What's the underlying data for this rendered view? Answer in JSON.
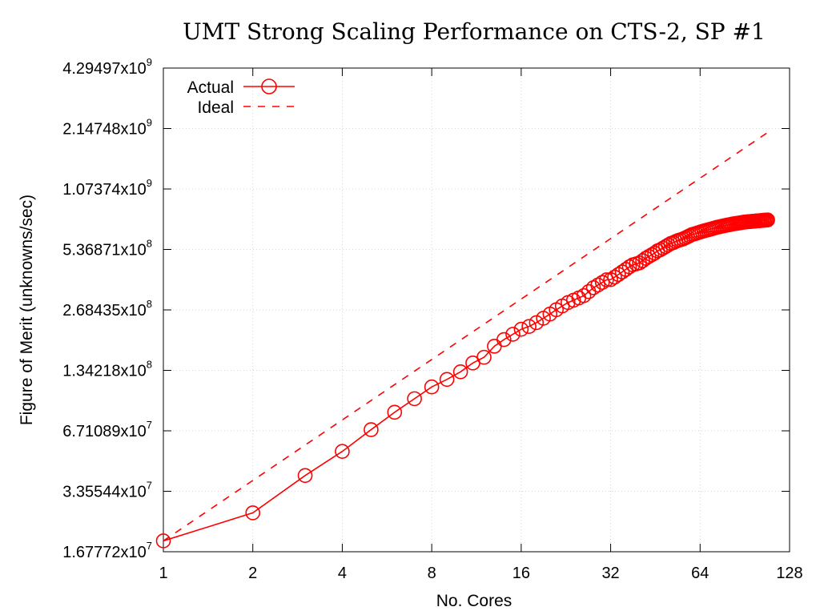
{
  "chart_data": {
    "type": "line",
    "title": "UMT Strong Scaling Performance on CTS-2, SP #1",
    "xlabel": "No. Cores",
    "ylabel": "Figure of Merit (unknowns/sec)",
    "x_scale": "log2",
    "y_scale": "log2",
    "xlim": [
      1,
      128
    ],
    "ylim": [
      16777216,
      4294967296
    ],
    "x_ticks": [
      {
        "value": 1,
        "label": "1"
      },
      {
        "value": 2,
        "label": "2"
      },
      {
        "value": 4,
        "label": "4"
      },
      {
        "value": 8,
        "label": "8"
      },
      {
        "value": 16,
        "label": "16"
      },
      {
        "value": 32,
        "label": "32"
      },
      {
        "value": 64,
        "label": "64"
      },
      {
        "value": 128,
        "label": "128"
      }
    ],
    "y_ticks": [
      {
        "value": 16777216,
        "mantissa": "1.67772x10",
        "exp": "7"
      },
      {
        "value": 33554432,
        "mantissa": "3.35544x10",
        "exp": "7"
      },
      {
        "value": 67108864,
        "mantissa": "6.71089x10",
        "exp": "7"
      },
      {
        "value": 134217728,
        "mantissa": "1.34218x10",
        "exp": "8"
      },
      {
        "value": 268435456,
        "mantissa": "2.68435x10",
        "exp": "8"
      },
      {
        "value": 536870912,
        "mantissa": "5.36871x10",
        "exp": "8"
      },
      {
        "value": 1073741824,
        "mantissa": "1.07374x10",
        "exp": "9"
      },
      {
        "value": 2147483648,
        "mantissa": "2.14748x10",
        "exp": "9"
      },
      {
        "value": 4294967296,
        "mantissa": "4.29497x10",
        "exp": "9"
      }
    ],
    "grid": true,
    "legend_position": "top-left",
    "series": [
      {
        "name": "Actual",
        "style": "solid-line-circle-markers",
        "color": "#ff0000",
        "x": [
          1,
          2,
          3,
          4,
          5,
          6,
          7,
          8,
          9,
          10,
          11,
          12,
          13,
          14,
          15,
          16,
          17,
          18,
          19,
          20,
          21,
          22,
          23,
          24,
          25,
          26,
          27,
          28,
          29,
          30,
          31,
          32,
          33,
          34,
          35,
          36,
          37,
          38,
          39,
          40,
          41,
          42,
          43,
          44,
          45,
          46,
          47,
          48,
          49,
          50,
          51,
          52,
          53,
          54,
          55,
          56,
          57,
          58,
          59,
          60,
          61,
          62,
          63,
          64,
          65,
          66,
          67,
          68,
          69,
          70,
          71,
          72,
          73,
          74,
          75,
          76,
          77,
          78,
          79,
          80,
          81,
          82,
          83,
          84,
          85,
          86,
          87,
          88,
          89,
          90,
          91,
          92,
          93,
          94,
          95,
          96,
          97,
          98,
          99,
          100,
          101,
          102,
          103,
          104,
          105,
          106,
          107,
          108
        ],
        "y": [
          19000000,
          26200000,
          40200000,
          53000000,
          68000000,
          83000000,
          97000000,
          111000000,
          121000000,
          132000000,
          146000000,
          156000000,
          177000000,
          191000000,
          203000000,
          215000000,
          222000000,
          232000000,
          244000000,
          256000000,
          269000000,
          281000000,
          292000000,
          300000000,
          308000000,
          316000000,
          331000000,
          346000000,
          357000000,
          368000000,
          379000000,
          380000000,
          391000000,
          403000000,
          415000000,
          427000000,
          440000000,
          450000000,
          455000000,
          460000000,
          472000000,
          485000000,
          495000000,
          505000000,
          515000000,
          528000000,
          535000000,
          545000000,
          555000000,
          565000000,
          575000000,
          580000000,
          588000000,
          595000000,
          600000000,
          605000000,
          612000000,
          620000000,
          628000000,
          636000000,
          640000000,
          645000000,
          650000000,
          655000000,
          660000000,
          664000000,
          668000000,
          672000000,
          676000000,
          680000000,
          684000000,
          688000000,
          692000000,
          695000000,
          698000000,
          701000000,
          704000000,
          707000000,
          710000000,
          712000000,
          715000000,
          718000000,
          720000000,
          722000000,
          724000000,
          726000000,
          728000000,
          730000000,
          732000000,
          734000000,
          736000000,
          737000000,
          738000000,
          739000000,
          740000000,
          741000000,
          742000000,
          743000000,
          744000000,
          745000000,
          746000000,
          747000000,
          748000000,
          749000000,
          750000000,
          751000000,
          752000000,
          753000000
        ]
      },
      {
        "name": "Ideal",
        "style": "dashed-line",
        "color": "#ff0000",
        "x": [
          1,
          108
        ],
        "y": [
          19000000,
          2052000000
        ]
      }
    ]
  }
}
